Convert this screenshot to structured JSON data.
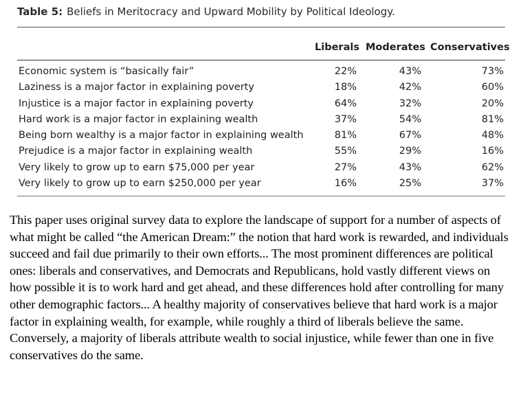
{
  "table": {
    "title_label": "Table 5:",
    "title_text": "Beliefs in Meritocracy and Upward Mobility by Political Ideology.",
    "columns": [
      "Liberals",
      "Moderates",
      "Conservatives"
    ],
    "rows": [
      {
        "label": "Economic system is “basically fair”",
        "liberals": "22%",
        "moderates": "43%",
        "conservatives": "73%"
      },
      {
        "label": "Laziness is a major factor in explaining poverty",
        "liberals": "18%",
        "moderates": "42%",
        "conservatives": "60%"
      },
      {
        "label": "Injustice is a major factor in explaining poverty",
        "liberals": "64%",
        "moderates": "32%",
        "conservatives": "20%"
      },
      {
        "label": "Hard work is a major factor in explaining wealth",
        "liberals": "37%",
        "moderates": "54%",
        "conservatives": "81%"
      },
      {
        "label": "Being born wealthy is a major factor in explaining wealth",
        "liberals": "81%",
        "moderates": "67%",
        "conservatives": "48%"
      },
      {
        "label": "Prejudice is a major factor in explaining wealth",
        "liberals": "55%",
        "moderates": "29%",
        "conservatives": "16%"
      },
      {
        "label": "Very likely to grow up to earn $75,000 per year",
        "liberals": "27%",
        "moderates": "43%",
        "conservatives": "62%"
      },
      {
        "label": "Very likely to grow up to earn $250,000 per year",
        "liberals": "16%",
        "moderates": "25%",
        "conservatives": "37%"
      }
    ]
  },
  "paragraph": "This paper uses original survey data to explore the landscape of support for a number of aspects of what might be called “the American Dream:” the notion that hard work is rewarded, and individuals succeed and fail due primarily to their own efforts... The most prominent differences are political ones: liberals and conservatives, and Democrats and Republicans, hold vastly different views on how possible it is to work hard and get ahead, and these differences hold after controlling for many other demographic factors... A healthy majority of conservatives believe that hard work is a major factor in explaining wealth, for example, while roughly a third of liberals believe the same. Conversely, a majority of liberals attribute wealth to social injustice, while fewer than one in five conservatives do the same."
}
